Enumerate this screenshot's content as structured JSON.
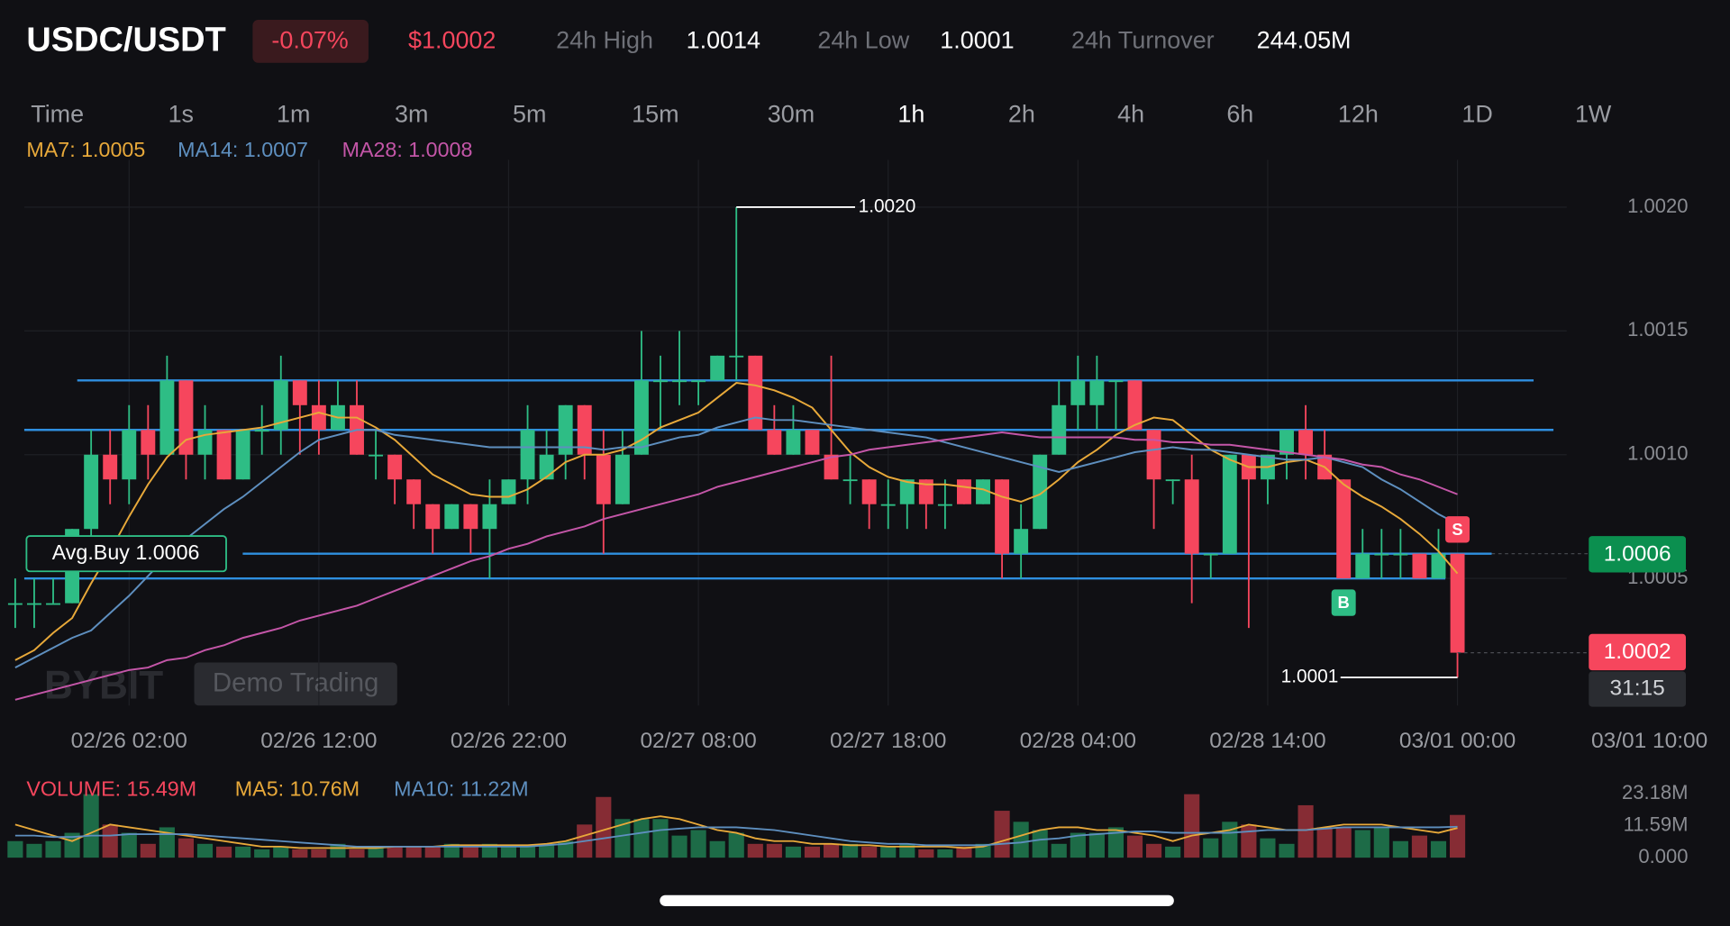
{
  "header": {
    "pair": "USDC/USDT",
    "change": "-0.07%",
    "price": "$1.0002",
    "stats": [
      {
        "label": "24h High",
        "value": "1.0014"
      },
      {
        "label": "24h Low",
        "value": "1.0001"
      },
      {
        "label": "24h Turnover",
        "value": "244.05M"
      }
    ]
  },
  "tabs": [
    {
      "label": "Time"
    },
    {
      "label": "1s"
    },
    {
      "label": "1m"
    },
    {
      "label": "3m"
    },
    {
      "label": "5m"
    },
    {
      "label": "15m"
    },
    {
      "label": "30m"
    },
    {
      "label": "1h",
      "active": true
    },
    {
      "label": "2h"
    },
    {
      "label": "4h"
    },
    {
      "label": "6h"
    },
    {
      "label": "12h"
    },
    {
      "label": "1D"
    },
    {
      "label": "1W"
    }
  ],
  "watermark": {
    "logo": "BYBIT",
    "badge": "Demo Trading"
  },
  "chart_data": [
    {
      "type": "candlestick",
      "categories": [
        null,
        null,
        null,
        null,
        null,
        null,
        "02/26 02:00",
        null,
        null,
        null,
        null,
        null,
        null,
        null,
        null,
        null,
        "02/26 12:00",
        null,
        null,
        null,
        null,
        null,
        null,
        null,
        null,
        null,
        "02/26 22:00",
        null,
        null,
        null,
        null,
        null,
        null,
        null,
        null,
        null,
        "02/27 08:00",
        null,
        null,
        null,
        null,
        null,
        null,
        null,
        null,
        null,
        "02/27 18:00",
        null,
        null,
        null,
        null,
        null,
        null,
        null,
        null,
        null,
        "02/28 04:00",
        null,
        null,
        null,
        null,
        null,
        null,
        null,
        null,
        null,
        "02/28 14:00",
        null,
        null,
        null,
        null,
        null,
        null,
        null,
        null,
        null,
        "03/01 00:00"
      ],
      "open": [
        1.0004,
        1.0004,
        1.0004,
        1.0004,
        1.0007,
        1.001,
        1.0009,
        1.0011,
        1.001,
        1.0013,
        1.001,
        1.0011,
        1.0009,
        1.0011,
        1.0011,
        1.0013,
        1.0012,
        1.0011,
        1.0012,
        1.001,
        1.001,
        1.0009,
        1.0008,
        1.0007,
        1.0008,
        1.0007,
        1.0008,
        1.0009,
        1.0009,
        1.001,
        1.0012,
        1.001,
        1.0008,
        1.001,
        1.0013,
        1.0013,
        1.0013,
        1.0013,
        1.0014,
        1.0014,
        1.0011,
        1.001,
        1.0011,
        1.001,
        1.0009,
        1.0009,
        1.0008,
        1.0008,
        1.0009,
        1.0008,
        1.0009,
        1.0008,
        1.0009,
        1.0006,
        1.0007,
        1.001,
        1.0012,
        1.0012,
        1.0013,
        1.0013,
        1.0011,
        1.0009,
        1.0009,
        1.0006,
        1.0006,
        1.001,
        1.0009,
        1.001,
        1.0011,
        1.001,
        1.0009,
        1.0005,
        1.0006,
        1.0006,
        1.0006,
        1.0005,
        1.0006
      ],
      "high": [
        1.0005,
        1.0005,
        1.0005,
        1.0007,
        1.0011,
        1.0011,
        1.0012,
        1.0012,
        1.0014,
        1.0013,
        1.0012,
        1.0011,
        1.0011,
        1.0012,
        1.0014,
        1.0013,
        1.0013,
        1.0013,
        1.0013,
        1.0011,
        1.001,
        1.0009,
        1.0008,
        1.0008,
        1.0008,
        1.0009,
        1.0009,
        1.0012,
        1.0011,
        1.0012,
        1.0012,
        1.0011,
        1.0011,
        1.0015,
        1.0014,
        1.0015,
        1.0013,
        1.0014,
        1.002,
        1.0014,
        1.0012,
        1.0012,
        1.0011,
        1.0014,
        1.001,
        1.0009,
        1.0009,
        1.0009,
        1.0009,
        1.0009,
        1.0009,
        1.0009,
        1.0009,
        1.0008,
        1.001,
        1.0013,
        1.0014,
        1.0014,
        1.0013,
        1.0013,
        1.0011,
        1.0009,
        1.001,
        1.0006,
        1.001,
        1.001,
        1.001,
        1.0011,
        1.0012,
        1.0011,
        1.0009,
        1.0007,
        1.0007,
        1.0007,
        1.0006,
        1.0007,
        1.0006
      ],
      "low": [
        1.0003,
        1.0003,
        1.0004,
        1.0004,
        1.0006,
        1.0008,
        1.0008,
        1.0009,
        1.001,
        1.0009,
        1.0009,
        1.0009,
        1.0009,
        1.001,
        1.001,
        1.001,
        1.001,
        1.0011,
        1.001,
        1.0009,
        1.0008,
        1.0007,
        1.0006,
        1.0007,
        1.0006,
        1.0005,
        1.0008,
        1.0008,
        1.0009,
        1.0009,
        1.0009,
        1.0006,
        1.0008,
        1.001,
        1.0011,
        1.0012,
        1.0012,
        1.0013,
        1.0013,
        1.0011,
        1.001,
        1.001,
        1.001,
        1.0009,
        1.0008,
        1.0007,
        1.0007,
        1.0007,
        1.0007,
        1.0007,
        1.0008,
        1.0008,
        1.0005,
        1.0005,
        1.0007,
        1.001,
        1.0011,
        1.0011,
        1.0011,
        1.0011,
        1.0007,
        1.0008,
        1.0004,
        1.0005,
        1.0006,
        1.0003,
        1.0008,
        1.0009,
        1.0009,
        1.0009,
        1.0005,
        1.0005,
        1.0005,
        1.0005,
        1.0005,
        1.0005,
        1.0001
      ],
      "close": [
        1.0004,
        1.0004,
        1.0004,
        1.0007,
        1.001,
        1.0009,
        1.0011,
        1.001,
        1.0013,
        1.001,
        1.0011,
        1.0009,
        1.0011,
        1.0011,
        1.0013,
        1.0012,
        1.0011,
        1.0012,
        1.001,
        1.001,
        1.0009,
        1.0008,
        1.0007,
        1.0008,
        1.0007,
        1.0008,
        1.0009,
        1.0011,
        1.001,
        1.0012,
        1.001,
        1.0008,
        1.001,
        1.0013,
        1.0013,
        1.0013,
        1.0013,
        1.0014,
        1.0014,
        1.0011,
        1.001,
        1.0011,
        1.001,
        1.0009,
        1.0009,
        1.0008,
        1.0008,
        1.0009,
        1.0008,
        1.0008,
        1.0008,
        1.0009,
        1.0006,
        1.0007,
        1.001,
        1.0012,
        1.0013,
        1.0013,
        1.0013,
        1.0011,
        1.0009,
        1.0009,
        1.0006,
        1.0006,
        1.001,
        1.0009,
        1.001,
        1.0011,
        1.001,
        1.0009,
        1.0005,
        1.0006,
        1.0006,
        1.0006,
        1.0005,
        1.0006,
        1.0002
      ],
      "up_color": "#2ebd85",
      "down_color": "#f6465d",
      "ylim": [
        1.0,
        1.0022
      ],
      "yticks": [
        1.0005,
        {
          "value": 1.001,
          "label": "1.0010"
        },
        1.0015,
        {
          "value": 1.002,
          "label": "1.0020"
        }
      ],
      "grid": true,
      "series": [
        {
          "name": "MA7: 1.0005",
          "color": "#e8a93a",
          "values": [
            1.00017,
            1.00021,
            1.00028,
            1.00034,
            1.00048,
            1.00061,
            1.00075,
            1.00088,
            1.00099,
            1.00106,
            1.00108,
            1.00109,
            1.0011,
            1.00111,
            1.00113,
            1.00115,
            1.00117,
            1.00115,
            1.00115,
            1.00111,
            1.00106,
            1.00099,
            1.00092,
            1.00088,
            1.00084,
            1.00083,
            1.00083,
            1.00086,
            1.00091,
            1.00097,
            1.001,
            1.001,
            1.00102,
            1.00106,
            1.00111,
            1.00114,
            1.00117,
            1.00123,
            1.00129,
            1.00128,
            1.00126,
            1.00123,
            1.00119,
            1.0011,
            1.00101,
            1.00095,
            1.00091,
            1.00089,
            1.00088,
            1.00088,
            1.00087,
            1.00086,
            1.00083,
            1.00081,
            1.00084,
            1.0009,
            1.00097,
            1.00102,
            1.00108,
            1.00112,
            1.00115,
            1.00114,
            1.00108,
            1.00102,
            1.00098,
            1.00095,
            1.00095,
            1.00097,
            1.00098,
            1.00095,
            1.00088,
            1.00083,
            1.00079,
            1.00074,
            1.00068,
            1.00061,
            1.00052
          ]
        },
        {
          "name": "MA14: 1.0007",
          "color": "#5e8fbf",
          "values": [
            1.00014,
            1.00018,
            1.00022,
            1.00026,
            1.00029,
            1.00036,
            1.00043,
            1.00051,
            1.00059,
            1.00066,
            1.00072,
            1.00078,
            1.00083,
            1.00089,
            1.00095,
            1.00101,
            1.00106,
            1.00108,
            1.0011,
            1.0011,
            1.00108,
            1.00107,
            1.00106,
            1.00105,
            1.00104,
            1.00103,
            1.00103,
            1.00103,
            1.00103,
            1.00103,
            1.00103,
            1.00102,
            1.00103,
            1.00103,
            1.00105,
            1.00107,
            1.00108,
            1.00111,
            1.00113,
            1.00115,
            1.00114,
            1.00114,
            1.00113,
            1.00112,
            1.00111,
            1.0011,
            1.00109,
            1.00108,
            1.00107,
            1.00105,
            1.00103,
            1.00101,
            1.00099,
            1.00097,
            1.00095,
            1.00093,
            1.00095,
            1.00097,
            1.00099,
            1.00101,
            1.00102,
            1.00103,
            1.00102,
            1.00102,
            1.00101,
            1.001,
            1.00099,
            1.00098,
            1.00098,
            1.00099,
            1.00097,
            1.00095,
            1.0009,
            1.00086,
            1.00081,
            1.00076,
            1.00072
          ]
        },
        {
          "name": "MA28: 1.0008",
          "color": "#c456a8",
          "values": [
            1.00001,
            1.00003,
            1.00005,
            1.00007,
            1.00009,
            1.00011,
            1.00013,
            1.00014,
            1.00017,
            1.00018,
            1.00021,
            1.00023,
            1.00026,
            1.00028,
            1.0003,
            1.00033,
            1.00035,
            1.00037,
            1.00039,
            1.00042,
            1.00045,
            1.00048,
            1.00051,
            1.00054,
            1.00057,
            1.00059,
            1.00062,
            1.00064,
            1.00067,
            1.00069,
            1.00071,
            1.00074,
            1.00076,
            1.00078,
            1.0008,
            1.00082,
            1.00084,
            1.00087,
            1.00089,
            1.00091,
            1.00093,
            1.00095,
            1.00097,
            1.00099,
            1.001,
            1.00102,
            1.00103,
            1.00104,
            1.00105,
            1.00106,
            1.00107,
            1.00108,
            1.00109,
            1.00108,
            1.00107,
            1.00107,
            1.00107,
            1.00107,
            1.00107,
            1.00106,
            1.00106,
            1.00105,
            1.00105,
            1.00104,
            1.00104,
            1.00103,
            1.00102,
            1.00101,
            1.001,
            1.00099,
            1.00098,
            1.00096,
            1.00095,
            1.00092,
            1.0009,
            1.00087,
            1.00084
          ]
        }
      ],
      "hlines": [
        {
          "value": 1.0013,
          "color": "#2f8fe0"
        },
        {
          "value": 1.0011,
          "color": "#2f8fe0"
        },
        {
          "value": 1.0006,
          "color": "#2f8fe0"
        },
        {
          "value": 1.0005,
          "color": "#2f8fe0"
        }
      ],
      "markers": {
        "high": {
          "value": 1.002,
          "label": "1.0020"
        },
        "low": {
          "value": 1.0001
        }
      },
      "avg_buy": {
        "value": 1.0006,
        "text": "Avg.Buy 1.0006"
      },
      "last_price": {
        "value": 1.0002,
        "countdown": "31:15"
      },
      "trades": [
        "B",
        "S"
      ],
      "x_end_label": "03/01 10:00"
    },
    {
      "type": "bar",
      "series": [
        {
          "name": "VOLUME: 15.49M",
          "color": "#f6465d",
          "values": [
            6,
            5,
            6,
            9,
            23,
            12,
            9,
            5,
            11,
            7,
            5,
            4,
            4,
            3,
            4,
            3,
            3,
            5,
            3,
            4,
            4,
            4,
            4,
            5,
            4,
            5,
            4,
            4,
            5,
            6,
            12,
            22,
            14,
            14,
            14,
            8,
            10,
            6,
            9,
            5,
            5,
            4,
            4,
            5,
            5,
            4,
            4,
            5,
            3,
            3,
            4,
            5,
            17,
            13,
            10,
            5,
            9,
            9,
            11,
            8,
            5,
            4,
            23,
            7,
            13,
            12,
            7,
            5,
            19,
            11,
            11,
            10,
            11,
            6,
            8,
            6,
            15.49
          ]
        },
        {
          "name": "MA5: 10.76M",
          "color": "#e8a93a",
          "values": [
            12,
            10,
            8,
            6,
            9,
            12,
            11,
            10,
            9,
            8,
            7,
            6,
            5,
            4,
            4,
            3.5,
            3.5,
            3.5,
            3.5,
            3.5,
            4,
            4,
            4,
            4.5,
            4.5,
            4.5,
            4.5,
            4.5,
            5,
            6,
            8,
            10,
            12,
            14,
            15,
            14,
            12,
            10,
            9,
            7,
            6,
            6,
            5,
            5,
            4.5,
            4.5,
            4,
            4,
            4,
            4,
            3.5,
            4,
            6,
            8,
            10,
            11,
            11,
            10,
            10,
            9,
            8,
            6,
            8,
            9,
            10,
            12,
            11,
            10,
            10,
            11,
            12,
            12,
            12,
            11,
            10,
            9,
            10.76
          ]
        },
        {
          "name": "MA10: 11.22M",
          "color": "#5e8fbf",
          "values": [
            8,
            8,
            7.5,
            7.5,
            8,
            8,
            8.5,
            8.5,
            8.5,
            8.5,
            8,
            7.5,
            7,
            6.5,
            6,
            5.5,
            5,
            4.5,
            4,
            4,
            4,
            4,
            4,
            4,
            4,
            4,
            4,
            4,
            4.5,
            5,
            6,
            7,
            8,
            9,
            10,
            10.5,
            11,
            11,
            11,
            10.5,
            10,
            9,
            8,
            7,
            6,
            5.5,
            5,
            5,
            4.5,
            4.5,
            4.5,
            4.5,
            5,
            5.5,
            6.5,
            7,
            8,
            8.5,
            9,
            9.5,
            9.5,
            9,
            9,
            9,
            9,
            9.5,
            10,
            10,
            10,
            10.5,
            11,
            11,
            11,
            11,
            11,
            11,
            11.22
          ]
        }
      ],
      "up_color": "#1d6b47",
      "down_color": "#862c34",
      "ylim": [
        0,
        23.18
      ],
      "yticks": [
        {
          "value": 0,
          "label": "0.000"
        },
        {
          "value": 11.59,
          "label": "11.59M"
        },
        {
          "value": 23.18,
          "label": "23.18M"
        }
      ]
    }
  ]
}
